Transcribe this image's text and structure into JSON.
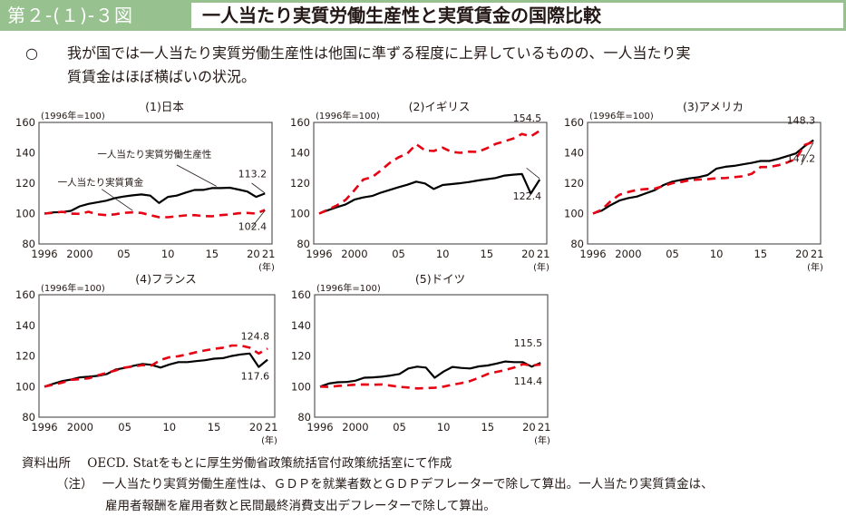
{
  "figure": {
    "number": "第２-(１)-３図",
    "title": "一人当たり実質労働生産性と実質賃金の国際比較",
    "summary_mark": "○",
    "summary_line1": "我が国では一人当たり実質労働生産性は他国に準ずる程度に上昇しているものの、一人当たり実",
    "summary_line2": "質賃金はほぼ横ばいの状況。"
  },
  "footer": {
    "source_label": "資料出所",
    "source_text": "OECD. Statをもとに厚生労働省政策統括官付政策統括室にて作成",
    "note_label": "（注）",
    "note_line1": "一人当たり実質労働生産性は、ＧＤＰを就業者数とＧＤＰデフレーターで除して算出。一人当たり実質賃金は、",
    "note_line2": "雇用者報酬を雇用者数と民間最終消費支出デフレーターで除して算出。"
  },
  "colors": {
    "productivity": "#000000",
    "wage": "#e60012",
    "header": "#97c18f"
  },
  "chart_data": [
    {
      "type": "line",
      "title": "(1)日本",
      "unit_note": "(1996年=100)",
      "x": [
        1996,
        1997,
        1998,
        1999,
        2000,
        2001,
        2002,
        2003,
        2004,
        2005,
        2006,
        2007,
        2008,
        2009,
        2010,
        2011,
        2012,
        2013,
        2014,
        2015,
        2016,
        2017,
        2018,
        2019,
        2020,
        2021
      ],
      "xticks": [
        "1996",
        "2000",
        "05",
        "10",
        "15",
        "20",
        "21"
      ],
      "xunit": "(年)",
      "ylim": [
        80,
        160
      ],
      "yticks": [
        80,
        100,
        120,
        140,
        160
      ],
      "series": [
        {
          "name": "一人当たり実質労働生産性",
          "style": "solid",
          "values": [
            100,
            100.8,
            101,
            101.8,
            104.8,
            106.4,
            107.4,
            108.5,
            110.2,
            111.2,
            112,
            112.6,
            111.8,
            107,
            111,
            111.8,
            113.8,
            115.5,
            115.6,
            116.8,
            116.8,
            117,
            115.8,
            114.5,
            111,
            113.2
          ]
        },
        {
          "name": "一人当たり実質賃金",
          "style": "dashed",
          "values": [
            100,
            100.5,
            101.2,
            100,
            99.8,
            101.2,
            99.5,
            99,
            99.5,
            100.5,
            100.8,
            100.4,
            99,
            97.6,
            97.6,
            98.2,
            98.8,
            99,
            98.4,
            98.2,
            99,
            99.4,
            100.2,
            100.4,
            100,
            102.4
          ]
        }
      ],
      "annotations": [
        {
          "text": "一人当たり実質労働生産性",
          "target": "productivity"
        },
        {
          "text": "一人当たり実質賃金",
          "target": "wage"
        },
        {
          "text": "113.2",
          "target": "productivity_2021"
        },
        {
          "text": "102.4",
          "target": "wage_2021"
        }
      ]
    },
    {
      "type": "line",
      "title": "(2)イギリス",
      "unit_note": "(1996年=100)",
      "x": [
        1996,
        1997,
        1998,
        1999,
        2000,
        2001,
        2002,
        2003,
        2004,
        2005,
        2006,
        2007,
        2008,
        2009,
        2010,
        2011,
        2012,
        2013,
        2014,
        2015,
        2016,
        2017,
        2018,
        2019,
        2020,
        2021
      ],
      "xticks": [
        "1996",
        "2000",
        "05",
        "10",
        "15",
        "20",
        "21"
      ],
      "xunit": "(年)",
      "ylim": [
        80,
        160
      ],
      "yticks": [
        80,
        100,
        120,
        140,
        160
      ],
      "series": [
        {
          "name": "一人当たり実質労働生産性",
          "style": "solid",
          "values": [
            100,
            102.2,
            104.2,
            106,
            109.2,
            110.6,
            111.6,
            113.8,
            115.6,
            117.4,
            119,
            121,
            119.8,
            116.2,
            118.8,
            119.4,
            120,
            120.8,
            121.8,
            122.6,
            123.4,
            125,
            125.6,
            126,
            113.2,
            122.4
          ]
        },
        {
          "name": "一人当たり実質賃金",
          "style": "dashed",
          "values": [
            100,
            102.6,
            105.4,
            109,
            115.4,
            122.4,
            124,
            128.4,
            133.4,
            137,
            139.6,
            145.6,
            141.6,
            141.2,
            143.4,
            140.6,
            140,
            140.8,
            140.6,
            143,
            145.8,
            147.6,
            149.4,
            152.4,
            150.8,
            154.5
          ]
        }
      ],
      "annotations": [
        {
          "text": "154.5",
          "target": "wage_2021"
        },
        {
          "text": "122.4",
          "target": "productivity_2021"
        }
      ]
    },
    {
      "type": "line",
      "title": "(3)アメリカ",
      "unit_note": "(1996年=100)",
      "x": [
        1996,
        1997,
        1998,
        1999,
        2000,
        2001,
        2002,
        2003,
        2004,
        2005,
        2006,
        2007,
        2008,
        2009,
        2010,
        2011,
        2012,
        2013,
        2014,
        2015,
        2016,
        2017,
        2018,
        2019,
        2020,
        2021
      ],
      "xticks": [
        "1996",
        "2000",
        "05",
        "10",
        "15",
        "20",
        "21"
      ],
      "xunit": "(年)",
      "ylim": [
        80,
        160
      ],
      "yticks": [
        80,
        100,
        120,
        140,
        160
      ],
      "series": [
        {
          "name": "一人当たり実質労働生産性",
          "style": "solid",
          "values": [
            100,
            102,
            105.6,
            108.6,
            110.2,
            111.2,
            113.4,
            115.4,
            118.8,
            121,
            122.2,
            123.2,
            124,
            125.4,
            129.6,
            130.8,
            131.4,
            132.4,
            133.4,
            134.6,
            134.6,
            136,
            137.8,
            139.6,
            144.4,
            148.3
          ]
        },
        {
          "name": "一人当たり実質賃金",
          "style": "dashed",
          "values": [
            100,
            102.6,
            108.2,
            112.4,
            114.2,
            115.6,
            116.2,
            116.4,
            118.2,
            120,
            120.8,
            122,
            122.4,
            122.6,
            123.2,
            123.4,
            124,
            124.6,
            126.2,
            130.6,
            130.6,
            131.8,
            133.6,
            136,
            145.2,
            147.2
          ]
        }
      ],
      "annotations": [
        {
          "text": "148.3",
          "target": "productivity_2021"
        },
        {
          "text": "147.2",
          "target": "wage_2021"
        }
      ]
    },
    {
      "type": "line",
      "title": "(4)フランス",
      "unit_note": "(1996年=100)",
      "x": [
        1996,
        1997,
        1998,
        1999,
        2000,
        2001,
        2002,
        2003,
        2004,
        2005,
        2006,
        2007,
        2008,
        2009,
        2010,
        2011,
        2012,
        2013,
        2014,
        2015,
        2016,
        2017,
        2018,
        2019,
        2020,
        2021
      ],
      "xticks": [
        "1996",
        "2000",
        "05",
        "10",
        "15",
        "20",
        "21"
      ],
      "xunit": "(年)",
      "ylim": [
        80,
        160
      ],
      "yticks": [
        80,
        100,
        120,
        140,
        160
      ],
      "series": [
        {
          "name": "一人当たり実質労働生産性",
          "style": "solid",
          "values": [
            100,
            101.8,
            103.6,
            104.6,
            106,
            106.4,
            107,
            108.2,
            111.2,
            112.2,
            113.6,
            114.8,
            114.2,
            112.4,
            114.4,
            116,
            116,
            116.6,
            117.2,
            118.2,
            118.6,
            120,
            121,
            121.6,
            112.8,
            117.6
          ]
        },
        {
          "name": "一人当たり実質賃金",
          "style": "dashed",
          "values": [
            100,
            101.2,
            102.6,
            104.4,
            104.8,
            105.4,
            107.4,
            109,
            110.6,
            112.4,
            113.2,
            114,
            113.8,
            117.4,
            119.2,
            119.8,
            121,
            122.4,
            123.6,
            124.6,
            125.4,
            126.8,
            126.8,
            125.4,
            121.6,
            124.8
          ]
        }
      ],
      "annotations": [
        {
          "text": "124.8",
          "target": "wage_2021"
        },
        {
          "text": "117.6",
          "target": "productivity_2021"
        }
      ]
    },
    {
      "type": "line",
      "title": "(5)ドイツ",
      "unit_note": "(1996年=100)",
      "x": [
        1996,
        1997,
        1998,
        1999,
        2000,
        2001,
        2002,
        2003,
        2004,
        2005,
        2006,
        2007,
        2008,
        2009,
        2010,
        2011,
        2012,
        2013,
        2014,
        2015,
        2016,
        2017,
        2018,
        2019,
        2020,
        2021
      ],
      "xticks": [
        "1996",
        "2000",
        "05",
        "10",
        "15",
        "20",
        "21"
      ],
      "xunit": "(年)",
      "ylim": [
        80,
        160
      ],
      "yticks": [
        80,
        100,
        120,
        140,
        160
      ],
      "series": [
        {
          "name": "一人当たり実質労働生産性",
          "style": "solid",
          "values": [
            100,
            102,
            102.8,
            103,
            103.8,
            105.8,
            106,
            106.4,
            107.2,
            108.2,
            111.8,
            113,
            112.4,
            105.8,
            109.8,
            112.8,
            112.2,
            111.8,
            113.2,
            113.8,
            115,
            116.4,
            116,
            116,
            113,
            115.5
          ]
        },
        {
          "name": "一人当たり実質賃金",
          "style": "dashed",
          "values": [
            100,
            99.8,
            100.4,
            100.8,
            101.2,
            101.4,
            101.2,
            101.4,
            100.6,
            99.8,
            99.4,
            98.8,
            99,
            99.2,
            100,
            101.2,
            102.2,
            103.6,
            105.8,
            108.2,
            109.6,
            110.8,
            112.4,
            114.6,
            113.8,
            114.4
          ]
        }
      ],
      "annotations": [
        {
          "text": "115.5",
          "target": "productivity_2021"
        },
        {
          "text": "114.4",
          "target": "wage_2021"
        }
      ]
    }
  ]
}
